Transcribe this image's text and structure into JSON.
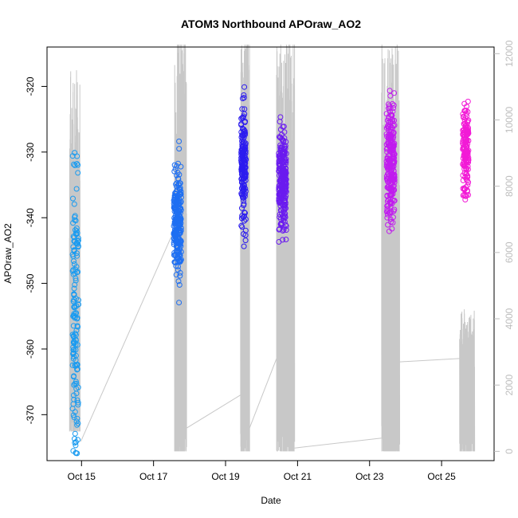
{
  "chart_data": {
    "type": "scatter",
    "title": "ATOM3 Northbound APOraw_AO2",
    "xlabel": "Date",
    "ylabel": "APOraw_AO2",
    "xlim": [
      "2023-10-14T01:00",
      "2023-10-26T11:00"
    ],
    "ylim": [
      -377,
      -314
    ],
    "y2lim": [
      -280,
      12200
    ],
    "x_ticks": [
      {
        "date": "2023-10-15",
        "label": "Oct 15"
      },
      {
        "date": "2023-10-17",
        "label": "Oct 17"
      },
      {
        "date": "2023-10-19",
        "label": "Oct 19"
      },
      {
        "date": "2023-10-21",
        "label": "Oct 21"
      },
      {
        "date": "2023-10-23",
        "label": "Oct 23"
      },
      {
        "date": "2023-10-25",
        "label": "Oct 25"
      }
    ],
    "y_ticks": [
      -320,
      -330,
      -340,
      -350,
      -360,
      -370
    ],
    "y2_ticks": [
      0,
      2000,
      4000,
      6000,
      8000,
      10000,
      12000
    ],
    "point_style": "open-circle",
    "color_gradient": [
      "#1a9bf0",
      "#1e6ff2",
      "#2b1bef",
      "#6a1bef",
      "#c01bef",
      "#f21bd6"
    ],
    "line_color": "#c8c8c8",
    "grid": false,
    "clusters": [
      {
        "x_center": "2023-10-14T20:00",
        "x_halfwidth_hours": 2.2,
        "y_min": -376,
        "y_max": -330,
        "y_center": -355,
        "y_spread": 11,
        "n": 150,
        "color": "#1a9bf0"
      },
      {
        "x_center": "2023-10-17T16:00",
        "x_halfwidth_hours": 2.8,
        "y_min": -357,
        "y_max": -323,
        "y_center": -341,
        "y_spread": 4.2,
        "n": 260,
        "color": "#1e6ff2"
      },
      {
        "x_center": "2023-10-19T12:00",
        "x_halfwidth_hours": 1.8,
        "y_min": -345,
        "y_max": -320,
        "y_center": -332,
        "y_spread": 4.5,
        "n": 170,
        "color": "#2b1bef"
      },
      {
        "x_center": "2023-10-20T14:00",
        "x_halfwidth_hours": 2.8,
        "y_min": -346,
        "y_max": -317,
        "y_center": -334,
        "y_spread": 3.8,
        "n": 260,
        "color": "#6a1bef"
      },
      {
        "x_center": "2023-10-23T14:00",
        "x_halfwidth_hours": 3.0,
        "y_min": -344,
        "y_max": -315,
        "y_center": -331,
        "y_spread": 5,
        "n": 260,
        "color": "#c01bef"
      },
      {
        "x_center": "2023-10-25T16:00",
        "x_halfwidth_hours": 2.2,
        "y_min": -339,
        "y_max": -320,
        "y_center": -330,
        "y_spread": 3.2,
        "n": 170,
        "color": "#f21bd6"
      }
    ],
    "secondary_line": {
      "description_series": "right axis values",
      "segments": [
        {
          "x_start": "2023-10-14T16:00",
          "x_end": "2023-10-14T23:00",
          "y_min": 600,
          "y_max": 11500
        },
        {
          "x_start": "2023-10-14T23:30",
          "x_end": "2023-10-17T14:00",
          "y_from": 300,
          "y_to": 6700
        },
        {
          "x_start": "2023-10-17T14:00",
          "x_end": "2023-10-17T22:00",
          "y_min": 0,
          "y_max": 13000
        },
        {
          "x_start": "2023-10-17T22:00",
          "x_end": "2023-10-19T10:00",
          "y_from": 700,
          "y_to": 1700
        },
        {
          "x_start": "2023-10-19T10:00",
          "x_end": "2023-10-19T16:00",
          "y_min": 0,
          "y_max": 12400
        },
        {
          "x_start": "2023-10-19T16:00",
          "x_end": "2023-10-20T10:00",
          "y_from": 700,
          "y_to": 2800
        },
        {
          "x_start": "2023-10-20T10:00",
          "x_end": "2023-10-20T22:00",
          "y_min": 0,
          "y_max": 12500
        },
        {
          "x_start": "2023-10-20T22:00",
          "x_end": "2023-10-23T08:00",
          "y_from": 100,
          "y_to": 400
        },
        {
          "x_start": "2023-10-23T08:00",
          "x_end": "2023-10-23T20:00",
          "y_min": 0,
          "y_max": 12400
        },
        {
          "x_start": "2023-10-23T20:00",
          "x_end": "2023-10-25T12:00",
          "y_from": 2700,
          "y_to": 2800
        },
        {
          "x_start": "2023-10-25T12:00",
          "x_end": "2023-10-25T22:00",
          "y_min": 0,
          "y_max": 4300
        }
      ]
    }
  }
}
